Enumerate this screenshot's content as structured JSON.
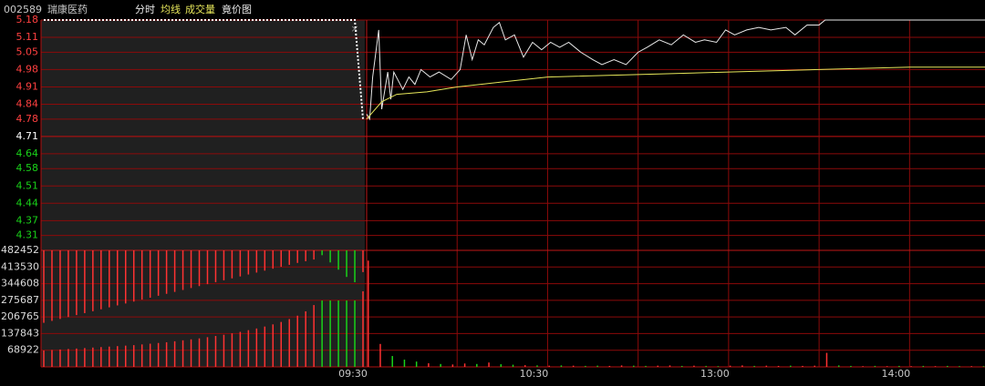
{
  "header": {
    "code": "002589",
    "name": "瑞康医药"
  },
  "chart_data": {
    "type": "line",
    "ylim": [
      4.25,
      5.18
    ],
    "yticks": [
      5.18,
      5.11,
      5.05,
      4.98,
      4.91,
      4.84,
      4.78,
      4.71,
      4.64,
      4.58,
      4.51,
      4.44,
      4.37,
      4.31
    ],
    "prev_close": 4.71,
    "up_color": "#ff4040",
    "down_color": "#19d219",
    "flat_color": "#ffffff",
    "y2lim": [
      0,
      482452
    ],
    "y2ticks": [
      482452,
      413530,
      344608,
      275687,
      206765,
      137843,
      68922
    ],
    "xlim": [
      0,
      205
    ],
    "xticks": [
      {
        "value": 0,
        "label": "09:30"
      },
      {
        "value": 60,
        "label": "10:30"
      },
      {
        "value": 120,
        "label": "13:00"
      },
      {
        "value": 180,
        "label": "14:00"
      }
    ],
    "grid": true,
    "series": [
      {
        "name": "分时",
        "color": "#e8e8e8",
        "x": [
          0,
          1,
          2,
          4,
          5,
          7,
          8,
          9,
          12,
          14,
          16,
          18,
          21,
          24,
          28,
          31,
          33,
          35,
          37,
          39,
          42,
          44,
          46,
          49,
          52,
          55,
          58,
          61,
          64,
          67,
          71,
          75,
          78,
          82,
          86,
          90,
          93,
          97,
          101,
          105,
          109,
          112,
          116,
          119,
          122,
          126,
          130,
          134,
          139,
          142,
          146,
          150,
          152,
          205
        ],
        "values": [
          4.8,
          4.78,
          4.95,
          5.14,
          4.82,
          4.97,
          4.86,
          4.97,
          4.9,
          4.95,
          4.92,
          4.98,
          4.95,
          4.97,
          4.94,
          4.98,
          5.12,
          5.02,
          5.1,
          5.08,
          5.15,
          5.17,
          5.1,
          5.12,
          5.03,
          5.09,
          5.06,
          5.09,
          5.07,
          5.09,
          5.05,
          5.02,
          5.0,
          5.02,
          5.0,
          5.05,
          5.07,
          5.1,
          5.08,
          5.12,
          5.09,
          5.1,
          5.09,
          5.14,
          5.12,
          5.14,
          5.15,
          5.14,
          5.15,
          5.12,
          5.16,
          5.16,
          5.18,
          5.18
        ]
      },
      {
        "name": "均线",
        "color": "#e6e65a",
        "x": [
          0,
          5,
          10,
          20,
          30,
          45,
          60,
          90,
          120,
          150,
          180,
          205
        ],
        "values": [
          4.78,
          4.85,
          4.88,
          4.89,
          4.91,
          4.93,
          4.95,
          4.96,
          4.97,
          4.98,
          4.99,
          4.99
        ]
      },
      {
        "name": "成交量",
        "type": "bar",
        "axis": "y2",
        "color": "#e6e65a",
        "x": [
          0,
          4,
          8,
          12,
          16,
          20,
          24,
          28,
          32,
          36,
          40,
          44,
          48,
          52,
          56,
          60,
          64,
          68,
          72,
          76,
          80,
          84,
          88,
          92,
          96,
          100,
          104,
          108,
          112,
          116,
          120,
          124,
          128,
          132,
          136,
          140,
          144,
          148,
          152,
          156,
          160,
          164,
          168,
          172,
          176,
          180,
          184,
          188,
          192,
          196,
          200,
          204
        ],
        "values": [
          440000,
          95000,
          45000,
          30000,
          22000,
          15000,
          12000,
          10000,
          14000,
          12000,
          18000,
          11000,
          9000,
          7000,
          6000,
          5000,
          6000,
          5000,
          4000,
          5000,
          4000,
          6000,
          5000,
          4000,
          5000,
          6000,
          4000,
          5000,
          4000,
          3000,
          5000,
          6000,
          4000,
          5000,
          4000,
          5000,
          4000,
          5000,
          58000,
          6000,
          4000,
          3000,
          4000,
          3000,
          4000,
          3000,
          4000,
          3000,
          4000,
          3000,
          3000,
          3000
        ],
        "colors": [
          "#ff3232",
          "#ff3232",
          "#19d219",
          "#19d219",
          "#19d219",
          "#ff3232",
          "#19d219",
          "#ff3232",
          "#ff3232",
          "#19d219",
          "#ff3232",
          "#19d219",
          "#19d219",
          "#ff3232",
          "#19d219",
          "#ff3232",
          "#19d219",
          "#ff3232",
          "#19d219",
          "#19d219",
          "#ff3232",
          "#ff3232",
          "#19d219",
          "#19d219",
          "#ff3232",
          "#ff3232",
          "#19d219",
          "#ff3232",
          "#19d219",
          "#19d219",
          "#ff3232",
          "#ff3232",
          "#19d219",
          "#ff3232",
          "#ff3232",
          "#19d219",
          "#ff3232",
          "#ff3232",
          "#ff3232",
          "#19d219",
          "#19d219",
          "#ff3232",
          "#19d219",
          "#ff3232",
          "#19d219",
          "#ff3232",
          "#19d219",
          "#ff3232",
          "#19d219",
          "#19d219",
          "#ff3232",
          "#19d219"
        ]
      }
    ],
    "auction": {
      "title": "竟价图",
      "price_color": "#ffffff",
      "price": [
        5.18,
        5.18,
        5.18,
        5.18,
        5.18,
        5.18,
        5.18,
        5.18,
        5.18,
        5.18,
        5.18,
        5.18,
        5.18,
        5.18,
        5.18,
        5.18,
        5.18,
        5.18,
        5.18,
        5.18,
        5.18,
        5.18,
        5.18,
        5.18,
        5.18,
        5.18,
        5.18,
        5.18,
        5.18,
        5.18,
        5.18,
        5.18,
        5.18,
        5.18,
        5.18,
        5.18,
        5.18,
        5.18,
        5.18,
        4.78
      ],
      "matched": [
        68000,
        70000,
        72000,
        74000,
        76000,
        78000,
        80000,
        82000,
        84000,
        86000,
        88000,
        90000,
        93000,
        96000,
        99000,
        102000,
        106000,
        110000,
        114000,
        118000,
        123000,
        128000,
        133000,
        139000,
        145000,
        152000,
        159000,
        167000,
        176000,
        186000,
        198000,
        212000,
        230000,
        256000,
        275000,
        275000,
        275000,
        275000,
        275000,
        313000
      ],
      "unmatched": [
        300000,
        292000,
        284000,
        276000,
        268000,
        260000,
        252000,
        244000,
        236000,
        228000,
        220000,
        212000,
        204000,
        196000,
        188000,
        180000,
        172000,
        164000,
        156000,
        148000,
        140000,
        132000,
        124000,
        116000,
        108000,
        100000,
        92000,
        84000,
        76000,
        68000,
        60000,
        52000,
        45000,
        38000,
        20000,
        50000,
        80000,
        110000,
        132000,
        90000
      ],
      "colors": [
        "#ff3232",
        "#ff3232",
        "#ff3232",
        "#ff3232",
        "#ff3232",
        "#ff3232",
        "#ff3232",
        "#ff3232",
        "#ff3232",
        "#ff3232",
        "#ff3232",
        "#ff3232",
        "#ff3232",
        "#ff3232",
        "#ff3232",
        "#ff3232",
        "#ff3232",
        "#ff3232",
        "#ff3232",
        "#ff3232",
        "#ff3232",
        "#ff3232",
        "#ff3232",
        "#ff3232",
        "#ff3232",
        "#ff3232",
        "#ff3232",
        "#ff3232",
        "#ff3232",
        "#ff3232",
        "#ff3232",
        "#ff3232",
        "#ff3232",
        "#ff3232",
        "#19d219",
        "#19d219",
        "#19d219",
        "#19d219",
        "#19d219",
        "#ff3232"
      ]
    }
  }
}
